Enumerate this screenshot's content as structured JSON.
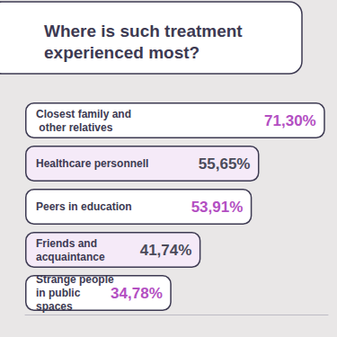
{
  "chart_data": {
    "type": "bar",
    "title": "Where is such treatment experienced most?",
    "categories": [
      "Closest family and other relatives",
      "Healthcare personnell",
      "Peers in education",
      "Friends and acquaintance",
      "Strange people in public spaces"
    ],
    "values": [
      71.3,
      55.65,
      53.91,
      41.74,
      34.78
    ],
    "value_labels": [
      "71,30%",
      "55,65%",
      "53,91%",
      "41,74%",
      "34,78%"
    ],
    "colors": [
      "#ffffff",
      "#f5eaf8",
      "#ffffff",
      "#f5eaf8",
      "#ffffff"
    ],
    "orientation": "horizontal",
    "data_labels": true,
    "tick_labels": false,
    "grid": false,
    "xlim": [
      0,
      72
    ]
  }
}
